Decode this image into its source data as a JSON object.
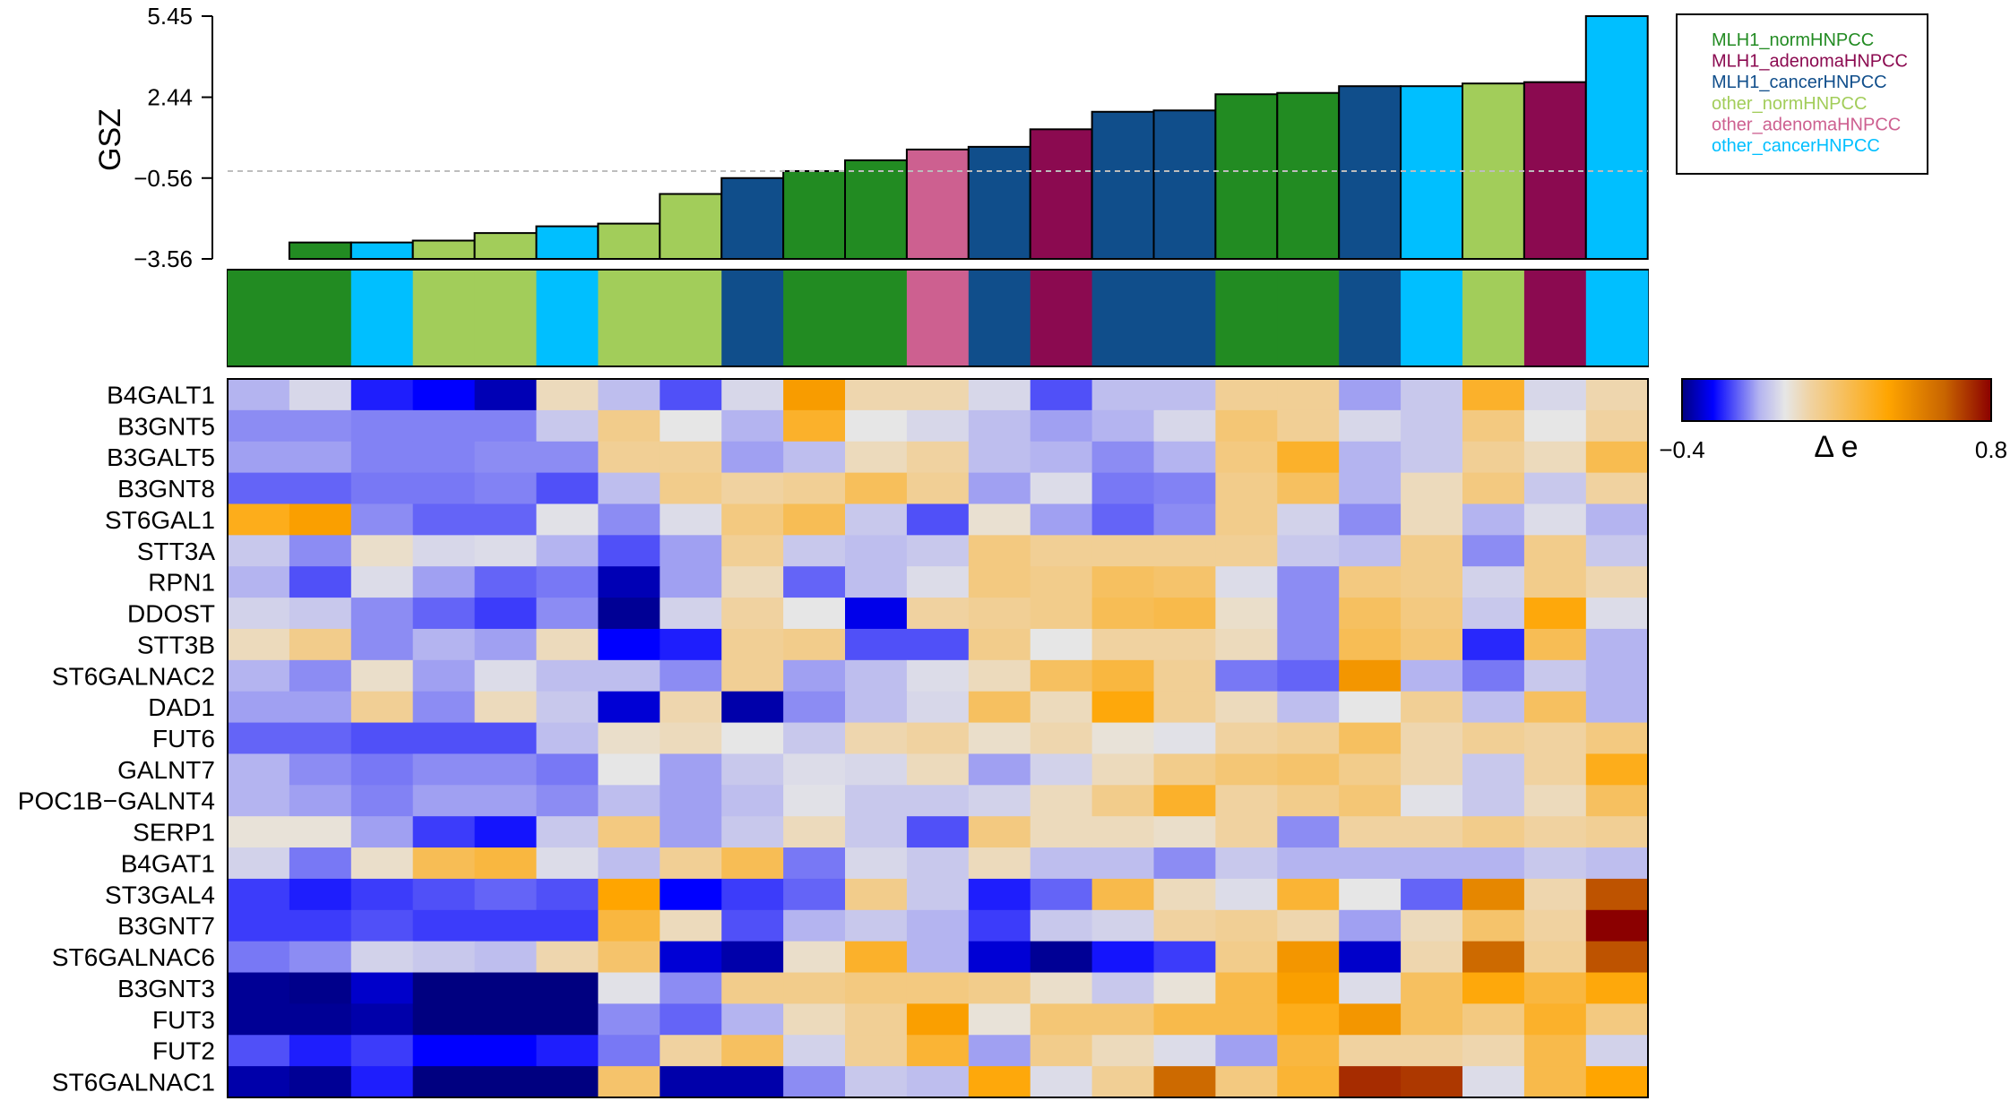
{
  "chart_data": [
    {
      "type": "bar",
      "ylabel": "GSZ",
      "yticks": [
        "5.45",
        "2.44",
        "−0.56",
        "−3.56"
      ],
      "ytick_values": [
        5.45,
        2.44,
        -0.56,
        -3.56
      ],
      "ylim": [
        -3.56,
        5.45
      ],
      "reference_line": -0.3,
      "values": [
        -3.56,
        -2.95,
        -2.95,
        -2.88,
        -2.6,
        -2.35,
        -2.25,
        -1.15,
        -0.56,
        -0.3,
        0.1,
        0.5,
        0.6,
        1.25,
        1.9,
        1.95,
        2.55,
        2.6,
        2.85,
        2.85,
        2.95,
        3.0,
        5.45
      ],
      "groups": [
        "MLH1_normHNPCC",
        "MLH1_normHNPCC",
        "other_cancerHNPCC",
        "other_normHNPCC",
        "other_normHNPCC",
        "other_cancerHNPCC",
        "other_normHNPCC",
        "other_normHNPCC",
        "MLH1_cancerHNPCC",
        "MLH1_normHNPCC",
        "MLH1_normHNPCC",
        "other_adenomaHNPCC",
        "MLH1_cancerHNPCC",
        "MLH1_adenomaHNPCC",
        "MLH1_cancerHNPCC",
        "MLH1_cancerHNPCC",
        "MLH1_normHNPCC",
        "MLH1_normHNPCC",
        "MLH1_cancerHNPCC",
        "other_cancerHNPCC",
        "other_normHNPCC",
        "MLH1_adenomaHNPCC",
        "other_cancerHNPCC"
      ],
      "grid": false
    },
    {
      "type": "heatmap",
      "rows": [
        "B4GALT1",
        "B3GNT5",
        "B3GALT5",
        "B3GNT8",
        "ST6GAL1",
        "STT3A",
        "RPN1",
        "DDOST",
        "STT3B",
        "ST6GALNAC2",
        "DAD1",
        "FUT6",
        "GALNT7",
        "POC1B−GALNT4",
        "SERP1",
        "B4GAT1",
        "ST3GAL4",
        "B3GNT7",
        "ST6GALNAC6",
        "B3GNT3",
        "FUT3",
        "FUT2",
        "ST6GALNAC1"
      ],
      "values": [
        [
          -0.1,
          -0.03,
          -0.25,
          -0.28,
          -0.35,
          0.06,
          -0.08,
          -0.2,
          -0.03,
          0.43,
          0.08,
          0.08,
          -0.03,
          -0.2,
          -0.08,
          -0.08,
          0.12,
          0.12,
          -0.12,
          -0.06,
          0.32,
          -0.03,
          0.08
        ],
        [
          -0.14,
          -0.14,
          -0.15,
          -0.15,
          -0.15,
          -0.06,
          0.14,
          0.0,
          -0.1,
          0.32,
          0.0,
          -0.03,
          -0.08,
          -0.12,
          -0.1,
          -0.03,
          0.18,
          0.12,
          -0.03,
          -0.06,
          0.16,
          0.0,
          0.1
        ],
        [
          -0.12,
          -0.12,
          -0.15,
          -0.15,
          -0.14,
          -0.14,
          0.12,
          0.12,
          -0.12,
          -0.08,
          0.06,
          0.1,
          -0.08,
          -0.1,
          -0.14,
          -0.1,
          0.16,
          0.32,
          -0.1,
          -0.06,
          0.12,
          0.06,
          0.25
        ],
        [
          -0.18,
          -0.18,
          -0.16,
          -0.16,
          -0.15,
          -0.2,
          -0.08,
          0.14,
          0.1,
          0.12,
          0.23,
          0.12,
          -0.12,
          -0.02,
          -0.16,
          -0.15,
          0.14,
          0.22,
          -0.1,
          0.06,
          0.16,
          -0.06,
          0.1
        ],
        [
          0.35,
          0.42,
          -0.14,
          -0.18,
          -0.18,
          -0.01,
          -0.14,
          -0.02,
          0.16,
          0.24,
          -0.06,
          -0.2,
          0.03,
          -0.12,
          -0.18,
          -0.14,
          0.14,
          -0.04,
          -0.14,
          0.06,
          -0.1,
          -0.02,
          -0.1
        ],
        [
          -0.06,
          -0.14,
          0.04,
          -0.03,
          -0.02,
          -0.1,
          -0.2,
          -0.12,
          0.12,
          -0.06,
          -0.08,
          -0.06,
          0.16,
          0.12,
          0.12,
          0.12,
          0.12,
          -0.06,
          -0.08,
          0.14,
          -0.14,
          0.14,
          -0.06
        ],
        [
          -0.1,
          -0.2,
          -0.02,
          -0.12,
          -0.18,
          -0.16,
          -0.35,
          -0.12,
          0.06,
          -0.18,
          -0.08,
          -0.02,
          0.16,
          0.14,
          0.22,
          0.2,
          -0.02,
          -0.14,
          0.16,
          0.14,
          -0.04,
          0.14,
          0.08
        ],
        [
          -0.04,
          -0.06,
          -0.14,
          -0.18,
          -0.22,
          -0.14,
          -0.38,
          -0.04,
          0.1,
          0.0,
          -0.3,
          0.1,
          0.12,
          0.14,
          0.24,
          0.26,
          0.04,
          -0.14,
          0.22,
          0.16,
          -0.06,
          0.38,
          -0.02
        ],
        [
          0.06,
          0.14,
          -0.14,
          -0.1,
          -0.12,
          0.06,
          -0.28,
          -0.25,
          0.12,
          0.14,
          -0.2,
          -0.2,
          0.14,
          0.0,
          0.1,
          0.1,
          0.06,
          -0.14,
          0.24,
          0.18,
          -0.24,
          0.24,
          -0.1
        ],
        [
          -0.1,
          -0.14,
          0.04,
          -0.12,
          -0.02,
          -0.08,
          -0.08,
          -0.14,
          0.12,
          -0.12,
          -0.08,
          -0.02,
          0.06,
          0.22,
          0.28,
          0.12,
          -0.16,
          -0.18,
          0.45,
          -0.1,
          -0.16,
          -0.06,
          -0.1
        ],
        [
          -0.12,
          -0.12,
          0.12,
          -0.14,
          0.06,
          -0.06,
          -0.32,
          0.08,
          -0.36,
          -0.14,
          -0.08,
          -0.03,
          0.22,
          0.06,
          0.38,
          0.12,
          0.06,
          -0.08,
          0.0,
          0.12,
          -0.08,
          0.22,
          -0.1
        ],
        [
          -0.18,
          -0.18,
          -0.2,
          -0.2,
          -0.2,
          -0.08,
          0.04,
          0.06,
          0.0,
          -0.06,
          0.08,
          0.1,
          0.04,
          0.08,
          0.02,
          -0.01,
          0.1,
          0.12,
          0.22,
          0.08,
          0.12,
          0.1,
          0.16
        ],
        [
          -0.1,
          -0.14,
          -0.16,
          -0.14,
          -0.14,
          -0.16,
          0.0,
          -0.12,
          -0.06,
          -0.02,
          -0.03,
          0.06,
          -0.12,
          -0.04,
          0.06,
          0.14,
          0.18,
          0.2,
          0.14,
          0.08,
          -0.06,
          0.1,
          0.35
        ],
        [
          -0.1,
          -0.12,
          -0.15,
          -0.12,
          -0.12,
          -0.14,
          -0.08,
          -0.12,
          -0.08,
          -0.01,
          -0.06,
          -0.06,
          -0.04,
          0.06,
          0.14,
          0.32,
          0.1,
          0.14,
          0.18,
          -0.01,
          -0.06,
          0.06,
          0.22
        ],
        [
          0.02,
          0.02,
          -0.12,
          -0.22,
          -0.26,
          -0.06,
          0.16,
          -0.12,
          -0.06,
          0.06,
          -0.06,
          -0.2,
          0.16,
          0.06,
          0.06,
          0.04,
          0.1,
          -0.14,
          0.1,
          0.1,
          0.14,
          0.1,
          0.12
        ],
        [
          -0.04,
          -0.16,
          0.04,
          0.24,
          0.28,
          -0.02,
          -0.08,
          0.12,
          0.24,
          -0.16,
          -0.03,
          -0.06,
          0.06,
          -0.08,
          -0.08,
          -0.14,
          -0.06,
          -0.1,
          -0.1,
          -0.1,
          -0.1,
          -0.06,
          -0.08
        ],
        [
          -0.22,
          -0.25,
          -0.22,
          -0.2,
          -0.18,
          -0.2,
          0.4,
          -0.28,
          -0.22,
          -0.18,
          0.14,
          -0.06,
          -0.25,
          -0.18,
          0.26,
          0.06,
          -0.02,
          0.3,
          0.0,
          -0.18,
          0.5,
          0.08,
          0.65
        ],
        [
          -0.22,
          -0.22,
          -0.2,
          -0.22,
          -0.22,
          -0.22,
          0.28,
          0.06,
          -0.2,
          -0.1,
          -0.06,
          -0.1,
          -0.22,
          -0.06,
          -0.04,
          0.1,
          0.12,
          0.08,
          -0.12,
          0.06,
          0.2,
          0.1,
          0.8
        ],
        [
          -0.16,
          -0.14,
          -0.04,
          -0.06,
          -0.08,
          0.08,
          0.2,
          -0.32,
          -0.36,
          0.04,
          0.32,
          -0.1,
          -0.32,
          -0.38,
          -0.26,
          -0.22,
          0.14,
          0.45,
          -0.33,
          0.08,
          0.6,
          0.12,
          0.65
        ],
        [
          -0.38,
          -0.39,
          -0.33,
          -0.4,
          -0.4,
          -0.4,
          -0.01,
          -0.14,
          0.14,
          0.14,
          0.16,
          0.16,
          0.14,
          0.04,
          -0.06,
          0.02,
          0.26,
          0.42,
          -0.02,
          0.22,
          0.38,
          0.28,
          0.38
        ],
        [
          -0.38,
          -0.38,
          -0.36,
          -0.4,
          -0.4,
          -0.4,
          -0.14,
          -0.18,
          -0.1,
          0.06,
          0.12,
          0.42,
          0.02,
          0.18,
          0.18,
          0.26,
          0.26,
          0.35,
          0.45,
          0.22,
          0.16,
          0.32,
          0.16
        ],
        [
          -0.2,
          -0.25,
          -0.22,
          -0.28,
          -0.28,
          -0.25,
          -0.16,
          0.1,
          0.22,
          -0.04,
          0.12,
          0.3,
          -0.12,
          0.14,
          0.06,
          -0.02,
          -0.12,
          0.28,
          0.1,
          0.1,
          0.08,
          0.26,
          -0.04
        ],
        [
          -0.36,
          -0.38,
          -0.25,
          -0.4,
          -0.4,
          -0.4,
          0.2,
          -0.36,
          -0.36,
          -0.14,
          -0.06,
          -0.08,
          0.38,
          -0.02,
          0.12,
          0.6,
          0.16,
          0.3,
          0.72,
          0.7,
          -0.02,
          0.26,
          0.4
        ]
      ]
    }
  ],
  "legend": {
    "entries": [
      {
        "name": "MLH1_normHNPCC",
        "color": "#228B22"
      },
      {
        "name": "MLH1_adenomaHNPCC",
        "color": "#8B0A50"
      },
      {
        "name": "MLH1_cancerHNPCC",
        "color": "#104E8B"
      },
      {
        "name": "other_normHNPCC",
        "color": "#A2CD5A"
      },
      {
        "name": "other_adenomaHNPCC",
        "color": "#CD6090"
      },
      {
        "name": "other_cancerHNPCC",
        "color": "#00BFFF"
      }
    ]
  },
  "colorbar": {
    "label": "Δ e",
    "min_label": "−0.4",
    "max_label": "0.8",
    "min": -0.4,
    "max": 0.8,
    "stops": [
      {
        "v": -0.4,
        "color": "#000080"
      },
      {
        "v": -0.28,
        "color": "#0000FF"
      },
      {
        "v": -0.1,
        "color": "#B4B4F0"
      },
      {
        "v": 0.0,
        "color": "#E6E6E6"
      },
      {
        "v": 0.1,
        "color": "#F0D2A0"
      },
      {
        "v": 0.4,
        "color": "#FFA500"
      },
      {
        "v": 0.62,
        "color": "#C86400"
      },
      {
        "v": 0.8,
        "color": "#8B0000"
      }
    ]
  }
}
